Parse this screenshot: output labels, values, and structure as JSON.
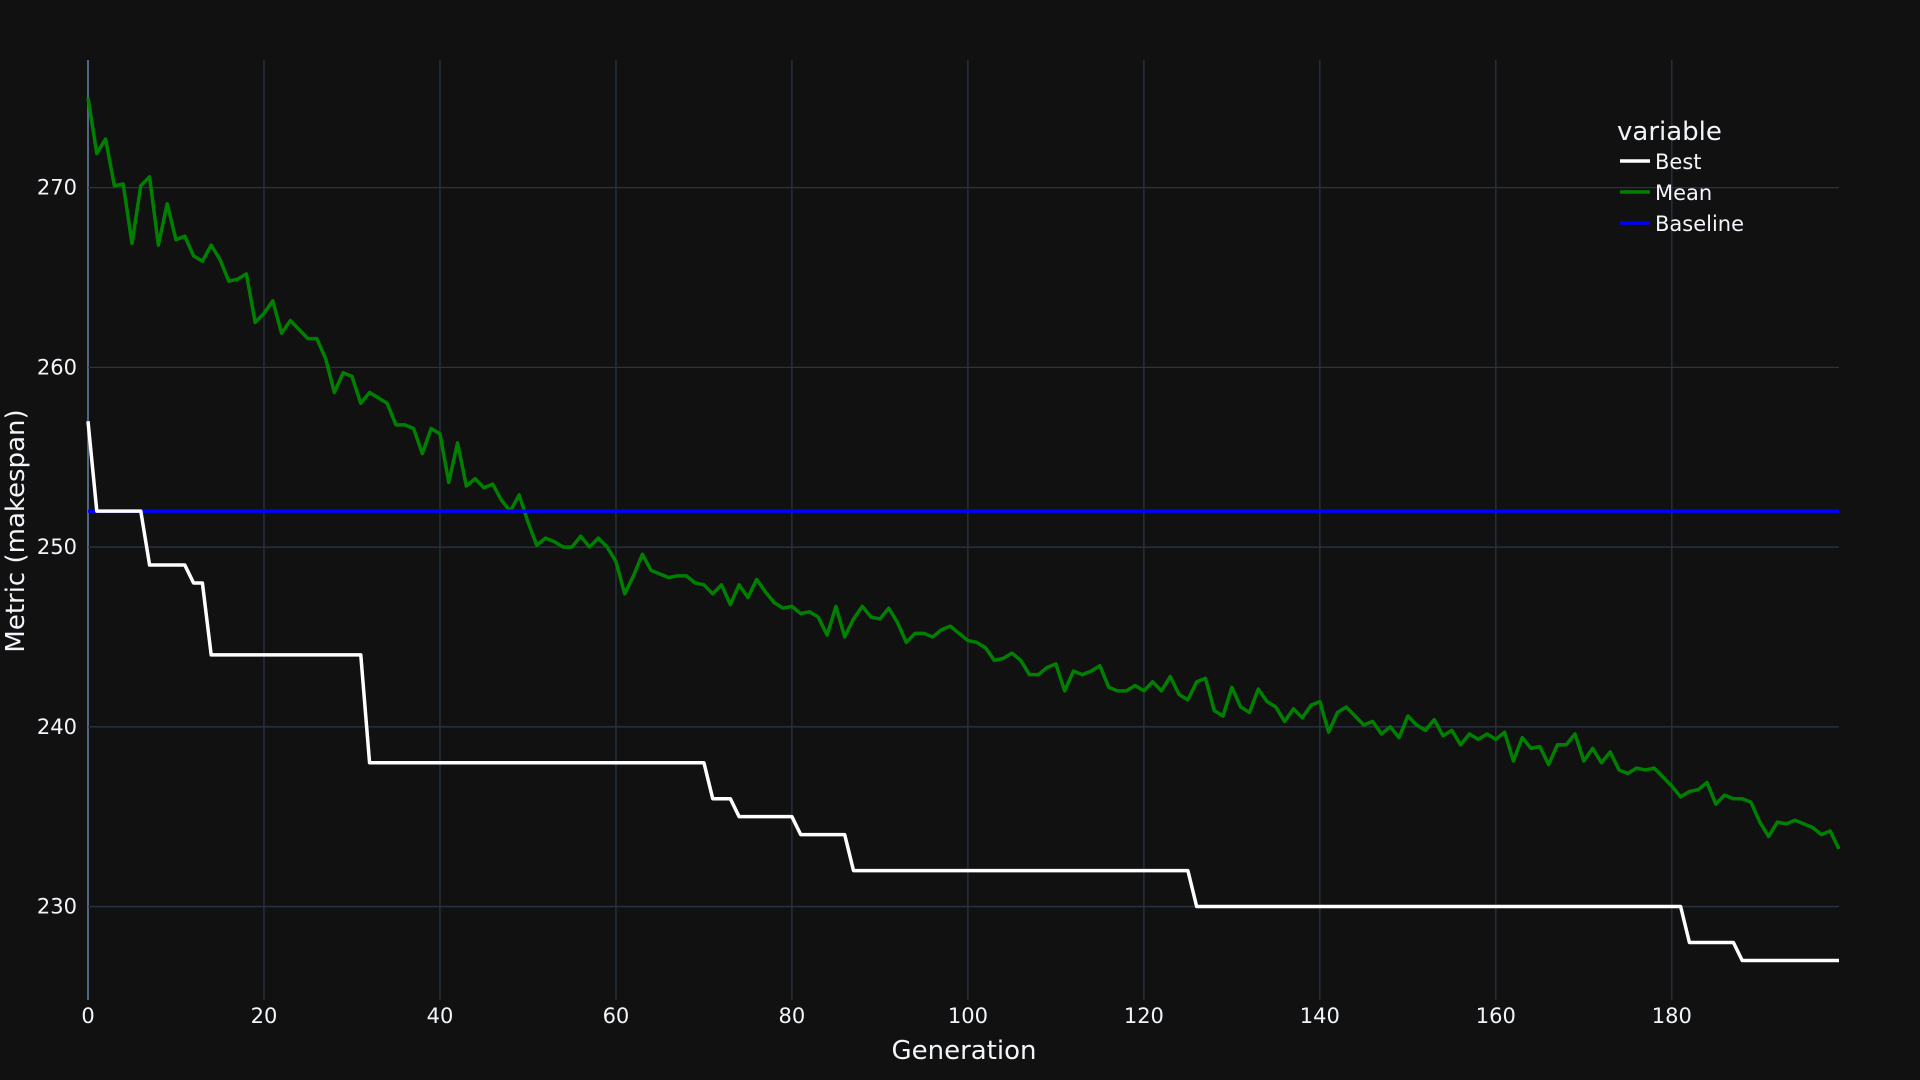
{
  "chart_data": {
    "type": "line",
    "xlabel": "Generation",
    "ylabel": "Metric (makespan)",
    "xlim": [
      0,
      199
    ],
    "ylim": [
      224.8,
      277.1
    ],
    "x_ticks": [
      0,
      20,
      40,
      60,
      80,
      100,
      120,
      140,
      160,
      180
    ],
    "y_ticks": [
      230,
      240,
      250,
      260,
      270
    ],
    "grid": true,
    "legend": {
      "title": "variable",
      "placement": "top-right",
      "entries": [
        "Best",
        "Mean",
        "Baseline"
      ]
    },
    "series": [
      {
        "name": "Best",
        "color": "#ffffff",
        "shape": "step",
        "points": [
          [
            0,
            257
          ],
          [
            1,
            252
          ],
          [
            6,
            252
          ],
          [
            7,
            249
          ],
          [
            11,
            249
          ],
          [
            12,
            248
          ],
          [
            13,
            248
          ],
          [
            14,
            244
          ],
          [
            31,
            244
          ],
          [
            32,
            238
          ],
          [
            70,
            238
          ],
          [
            71,
            236
          ],
          [
            73,
            236
          ],
          [
            74,
            235
          ],
          [
            80,
            235
          ],
          [
            81,
            234
          ],
          [
            86,
            234
          ],
          [
            87,
            232
          ],
          [
            125,
            232
          ],
          [
            126,
            230
          ],
          [
            181,
            230
          ],
          [
            182,
            228
          ],
          [
            187,
            228
          ],
          [
            188,
            227
          ],
          [
            199,
            227
          ]
        ]
      },
      {
        "name": "Mean",
        "color": "#008000",
        "shape": "linear",
        "points": [
          [
            0,
            275
          ],
          [
            1,
            271.9
          ],
          [
            2,
            272.7
          ],
          [
            3,
            270.1
          ],
          [
            4,
            270.2
          ],
          [
            5,
            266.9
          ],
          [
            6,
            270.1
          ],
          [
            7,
            270.6
          ],
          [
            8,
            266.8
          ],
          [
            9,
            269.1
          ],
          [
            10,
            267.1
          ],
          [
            11,
            267.3
          ],
          [
            12,
            266.2
          ],
          [
            13,
            265.9
          ],
          [
            14,
            266.8
          ],
          [
            15,
            266.0
          ],
          [
            16,
            264.8
          ],
          [
            17,
            264.9
          ],
          [
            18,
            265.2
          ],
          [
            19,
            262.5
          ],
          [
            20,
            263.0
          ],
          [
            21,
            263.7
          ],
          [
            22,
            261.9
          ],
          [
            23,
            262.6
          ],
          [
            24,
            262.1
          ],
          [
            25,
            261.6
          ],
          [
            26,
            261.6
          ],
          [
            27,
            260.5
          ],
          [
            28,
            258.6
          ],
          [
            29,
            259.7
          ],
          [
            30,
            259.5
          ],
          [
            31,
            258.0
          ],
          [
            32,
            258.6
          ],
          [
            33,
            258.3
          ],
          [
            34,
            258.0
          ],
          [
            35,
            256.8
          ],
          [
            36,
            256.8
          ],
          [
            37,
            256.6
          ],
          [
            38,
            255.2
          ],
          [
            39,
            256.6
          ],
          [
            40,
            256.3
          ],
          [
            41,
            253.6
          ],
          [
            42,
            255.8
          ],
          [
            43,
            253.4
          ],
          [
            44,
            253.8
          ],
          [
            45,
            253.3
          ],
          [
            46,
            253.5
          ],
          [
            47,
            252.6
          ],
          [
            48,
            252.0
          ],
          [
            49,
            252.9
          ],
          [
            50,
            251.4
          ],
          [
            51,
            250.1
          ],
          [
            52,
            250.5
          ],
          [
            53,
            250.3
          ],
          [
            54,
            250.0
          ],
          [
            55,
            250.0
          ],
          [
            56,
            250.6
          ],
          [
            57,
            250.0
          ],
          [
            58,
            250.5
          ],
          [
            59,
            250.0
          ],
          [
            60,
            249.2
          ],
          [
            61,
            247.4
          ],
          [
            62,
            248.4
          ],
          [
            63,
            249.6
          ],
          [
            64,
            248.7
          ],
          [
            65,
            248.5
          ],
          [
            66,
            248.3
          ],
          [
            67,
            248.4
          ],
          [
            68,
            248.4
          ],
          [
            69,
            248.0
          ],
          [
            70,
            247.9
          ],
          [
            71,
            247.4
          ],
          [
            72,
            247.9
          ],
          [
            73,
            246.8
          ],
          [
            74,
            247.9
          ],
          [
            75,
            247.2
          ],
          [
            76,
            248.2
          ],
          [
            77,
            247.5
          ],
          [
            78,
            246.9
          ],
          [
            79,
            246.6
          ],
          [
            80,
            246.7
          ],
          [
            81,
            246.3
          ],
          [
            82,
            246.4
          ],
          [
            83,
            246.1
          ],
          [
            84,
            245.1
          ],
          [
            85,
            246.7
          ],
          [
            86,
            245.0
          ],
          [
            87,
            246.0
          ],
          [
            88,
            246.7
          ],
          [
            89,
            246.1
          ],
          [
            90,
            246.0
          ],
          [
            91,
            246.6
          ],
          [
            92,
            245.8
          ],
          [
            93,
            244.7
          ],
          [
            94,
            245.2
          ],
          [
            95,
            245.2
          ],
          [
            96,
            245.0
          ],
          [
            97,
            245.4
          ],
          [
            98,
            245.6
          ],
          [
            99,
            245.2
          ],
          [
            100,
            244.8
          ],
          [
            101,
            244.7
          ],
          [
            102,
            244.4
          ],
          [
            103,
            243.7
          ],
          [
            104,
            243.8
          ],
          [
            105,
            244.1
          ],
          [
            106,
            243.7
          ],
          [
            107,
            242.9
          ],
          [
            108,
            242.9
          ],
          [
            109,
            243.3
          ],
          [
            110,
            243.5
          ],
          [
            111,
            242.0
          ],
          [
            112,
            243.1
          ],
          [
            113,
            242.9
          ],
          [
            114,
            243.1
          ],
          [
            115,
            243.4
          ],
          [
            116,
            242.2
          ],
          [
            117,
            242.0
          ],
          [
            118,
            242.0
          ],
          [
            119,
            242.3
          ],
          [
            120,
            242.0
          ],
          [
            121,
            242.5
          ],
          [
            122,
            242.0
          ],
          [
            123,
            242.8
          ],
          [
            124,
            241.8
          ],
          [
            125,
            241.5
          ],
          [
            126,
            242.5
          ],
          [
            127,
            242.7
          ],
          [
            128,
            240.9
          ],
          [
            129,
            240.6
          ],
          [
            130,
            242.2
          ],
          [
            131,
            241.1
          ],
          [
            132,
            240.8
          ],
          [
            133,
            242.1
          ],
          [
            134,
            241.4
          ],
          [
            135,
            241.1
          ],
          [
            136,
            240.3
          ],
          [
            137,
            241.0
          ],
          [
            138,
            240.5
          ],
          [
            139,
            241.2
          ],
          [
            140,
            241.4
          ],
          [
            141,
            239.7
          ],
          [
            142,
            240.8
          ],
          [
            143,
            241.1
          ],
          [
            144,
            240.6
          ],
          [
            145,
            240.1
          ],
          [
            146,
            240.3
          ],
          [
            147,
            239.6
          ],
          [
            148,
            240.0
          ],
          [
            149,
            239.4
          ],
          [
            150,
            240.6
          ],
          [
            151,
            240.1
          ],
          [
            152,
            239.8
          ],
          [
            153,
            240.4
          ],
          [
            154,
            239.5
          ],
          [
            155,
            239.8
          ],
          [
            156,
            239.0
          ],
          [
            157,
            239.6
          ],
          [
            158,
            239.3
          ],
          [
            159,
            239.6
          ],
          [
            160,
            239.3
          ],
          [
            161,
            239.7
          ],
          [
            162,
            238.1
          ],
          [
            163,
            239.4
          ],
          [
            164,
            238.8
          ],
          [
            165,
            238.9
          ],
          [
            166,
            237.9
          ],
          [
            167,
            239.0
          ],
          [
            168,
            239.0
          ],
          [
            169,
            239.6
          ],
          [
            170,
            238.1
          ],
          [
            171,
            238.8
          ],
          [
            172,
            238.0
          ],
          [
            173,
            238.6
          ],
          [
            174,
            237.6
          ],
          [
            175,
            237.4
          ],
          [
            176,
            237.7
          ],
          [
            177,
            237.6
          ],
          [
            178,
            237.7
          ],
          [
            179,
            237.2
          ],
          [
            180,
            236.7
          ],
          [
            181,
            236.1
          ],
          [
            182,
            236.4
          ],
          [
            183,
            236.5
          ],
          [
            184,
            236.9
          ],
          [
            185,
            235.7
          ],
          [
            186,
            236.2
          ],
          [
            187,
            236.0
          ],
          [
            188,
            236.0
          ],
          [
            189,
            235.8
          ],
          [
            190,
            234.7
          ],
          [
            191,
            233.9
          ],
          [
            192,
            234.7
          ],
          [
            193,
            234.6
          ],
          [
            194,
            234.8
          ],
          [
            195,
            234.6
          ],
          [
            196,
            234.4
          ],
          [
            197,
            234.0
          ],
          [
            198,
            234.2
          ],
          [
            199,
            233.2
          ]
        ]
      },
      {
        "name": "Baseline",
        "color": "#0000ff",
        "shape": "linear",
        "points": [
          [
            0,
            252
          ],
          [
            199,
            252
          ]
        ]
      }
    ]
  }
}
